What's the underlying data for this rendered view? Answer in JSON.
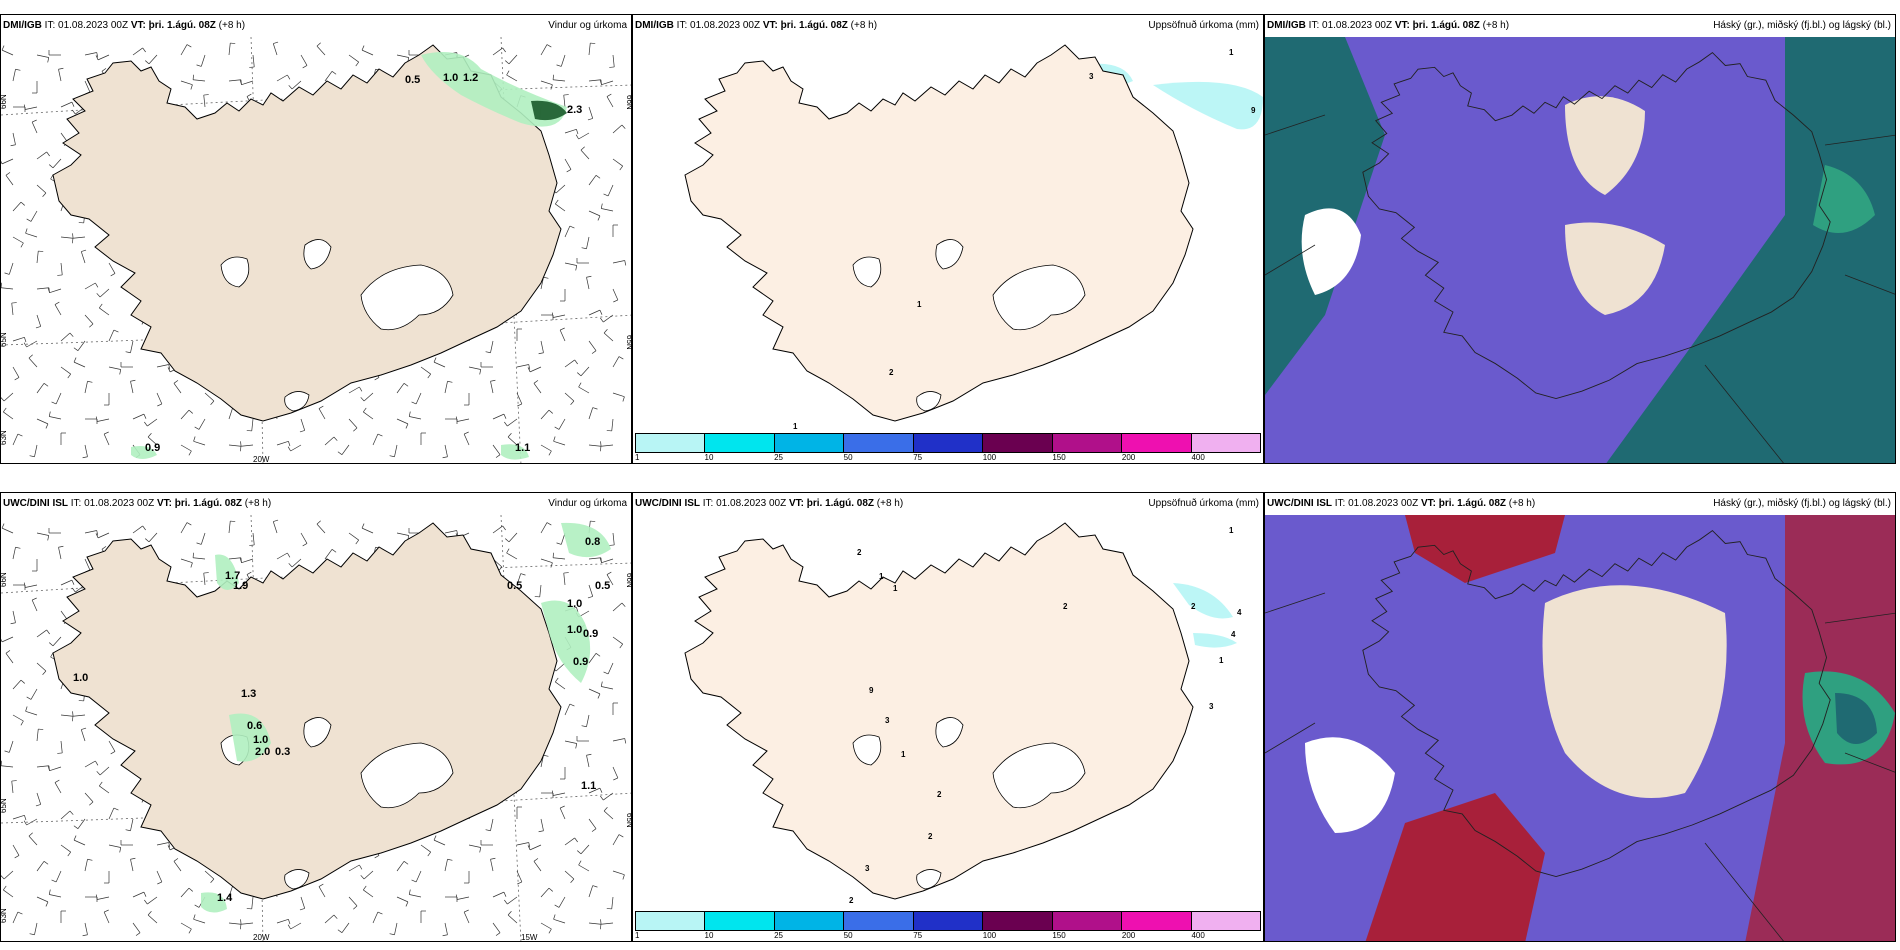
{
  "panels": [
    {
      "id": "p1",
      "header": {
        "model": "DMI/IGB",
        "it_label": "IT:",
        "it_value": "01.08.2023 00Z",
        "vt_label": "VT:",
        "vt_value": "þri. 1.ágú. 08Z",
        "lead": "(+8 h)",
        "title": "Vindur og úrkoma"
      },
      "type": "wind",
      "axis_labels": [
        "66N",
        "65N",
        "63N",
        "20W",
        "66N",
        "65N"
      ],
      "value_labels": [
        "0.5",
        "1.0",
        "1.2",
        "2.3",
        "0.9",
        "1.1"
      ]
    },
    {
      "id": "p2",
      "header": {
        "model": "DMI/IGB",
        "it_label": "IT:",
        "it_value": "01.08.2023 00Z",
        "vt_label": "VT:",
        "vt_value": "þri. 1.ágú. 08Z",
        "lead": "(+8 h)",
        "title": "Uppsöfnuð úrkoma (mm)"
      },
      "type": "precip",
      "value_labels": [
        "1",
        "3",
        "9",
        "1",
        "2",
        "1"
      ]
    },
    {
      "id": "p3",
      "header": {
        "model": "DMI/IGB",
        "it_label": "IT:",
        "it_value": "01.08.2023 00Z",
        "vt_label": "VT:",
        "vt_value": "þri. 1.ágú. 08Z",
        "lead": "(+8 h)",
        "title": "Háský (gr.), miðský (fj.bl.) og lágský (bl.)"
      },
      "type": "cloud"
    },
    {
      "id": "p4",
      "header": {
        "model": "UWC/DINI ISL",
        "it_label": "IT:",
        "it_value": "01.08.2023 00Z",
        "vt_label": "VT:",
        "vt_value": "þri. 1.ágú. 08Z",
        "lead": "(+8 h)",
        "title": "Vindur og úrkoma"
      },
      "type": "wind",
      "axis_labels": [
        "66N",
        "65N",
        "63N",
        "20W",
        "15W",
        "66N",
        "65N"
      ],
      "value_labels": [
        "0.8",
        "1.7",
        "1.9",
        "0.5",
        "0.5",
        "1.0",
        "1.0",
        "0.9",
        "0.9",
        "1.3",
        "0.6",
        "1.0",
        "2.0",
        "0.3",
        "1.1",
        "1.4",
        "1.0"
      ]
    },
    {
      "id": "p5",
      "header": {
        "model": "UWC/DINI ISL",
        "it_label": "IT:",
        "it_value": "01.08.2023 00Z",
        "vt_label": "VT:",
        "vt_value": "þri. 1.ágú. 08Z",
        "lead": "(+8 h)",
        "title": "Uppsöfnuð úrkoma (mm)"
      },
      "type": "precip",
      "value_labels": [
        "1",
        "2",
        "1",
        "1",
        "2",
        "2",
        "4",
        "4",
        "1",
        "3",
        "9",
        "3",
        "1",
        "2",
        "2",
        "3",
        "2"
      ]
    },
    {
      "id": "p6",
      "header": {
        "model": "UWC/DINI ISL",
        "it_label": "IT:",
        "it_value": "01.08.2023 00Z",
        "vt_label": "VT:",
        "vt_value": "þri. 1.ágú. 08Z",
        "lead": "(+8 h)",
        "title": "Háský (gr.), miðský (fj.bl.) og lágský (bl.)"
      },
      "type": "cloud"
    }
  ],
  "colorbar": {
    "ticks": [
      "1",
      "10",
      "25",
      "50",
      "75",
      "100",
      "150",
      "200",
      "400"
    ],
    "colors": [
      "#b8f5f5",
      "#00e5ee",
      "#00b4e6",
      "#3a6ee8",
      "#2030c8",
      "#6a0050",
      "#b0108a",
      "#ee10b0",
      "#f0b0f0"
    ]
  },
  "colors": {
    "land": "#efe2d2",
    "ice": "#ffffff",
    "sea": "#ffffff",
    "precip_light": "#b0f0c0",
    "precip_dark": "#1a5a2a",
    "cloud_low": "#6a5acd",
    "cloud_mid": "#1f6a72",
    "cloud_high": "#2fa080",
    "cloud_red": "#a8203a"
  }
}
